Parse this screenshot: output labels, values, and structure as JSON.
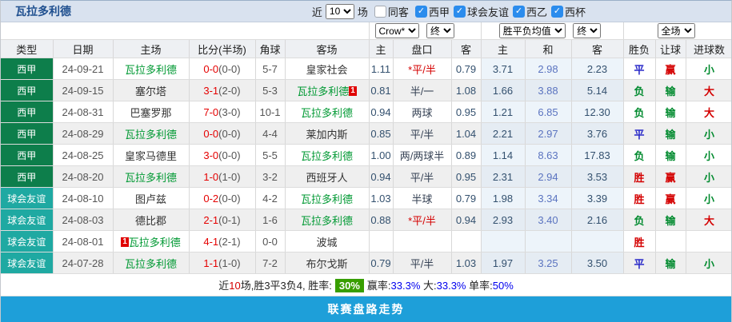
{
  "header": {
    "team": "瓦拉多利德",
    "recent_label": "近",
    "recent_value": "10",
    "matches_label": "场",
    "same_away_label": "同客",
    "leagues": [
      {
        "label": "西甲",
        "checked": true
      },
      {
        "label": "球会友谊",
        "checked": true
      },
      {
        "label": "西乙",
        "checked": true
      },
      {
        "label": "西杯",
        "checked": true
      }
    ]
  },
  "filters": {
    "odds_source": "Crow*",
    "asia_time": "终",
    "europe_avg": "胜平负均值",
    "europe_time": "终",
    "scope": "全场"
  },
  "columns": [
    "类型",
    "日期",
    "主场",
    "比分(半场)",
    "角球",
    "客场",
    "主",
    "盘口",
    "客",
    "主",
    "和",
    "客",
    "胜负",
    "让球",
    "进球数"
  ],
  "colors": {
    "league_green": "#0d7e4b",
    "league_teal": "#1fa9a2",
    "self_team_green": "#009933",
    "score_red": "#e50000",
    "result_red": "#d40000",
    "result_blue": "#2929c8",
    "result_green": "#008a2e",
    "summary_badge_green": "#389e00",
    "footer_blue": "#1e9fd9"
  },
  "rows": [
    {
      "league": "西甲",
      "league_class": "lg-green",
      "date": "24-09-21",
      "home": {
        "name": "瓦拉多利德",
        "self": true
      },
      "score_full": "0-0",
      "score_half": "(0-0)",
      "corners": "5-7",
      "away": {
        "name": "皇家社会",
        "self": false
      },
      "asia_home": "1.11",
      "asia_handicap": "*平/半",
      "asia_star": true,
      "asia_away": "0.79",
      "eu_home": "3.71",
      "eu_draw": "2.98",
      "eu_away": "2.23",
      "result": "平",
      "result_c": "blue",
      "hresult": "赢",
      "hresult_c": "red",
      "goals": "小",
      "goals_c": "green"
    },
    {
      "league": "西甲",
      "league_class": "lg-green",
      "date": "24-09-15",
      "home": {
        "name": "塞尔塔",
        "self": false
      },
      "score_full": "3-1",
      "score_half": "(2-0)",
      "corners": "5-3",
      "away": {
        "name": "瓦拉多利德",
        "self": true,
        "badge_after": "1"
      },
      "asia_home": "0.81",
      "asia_handicap": "半/一",
      "asia_star": false,
      "asia_away": "1.08",
      "eu_home": "1.66",
      "eu_draw": "3.88",
      "eu_away": "5.14",
      "result": "负",
      "result_c": "green",
      "hresult": "输",
      "hresult_c": "green",
      "goals": "大",
      "goals_c": "red"
    },
    {
      "league": "西甲",
      "league_class": "lg-green",
      "date": "24-08-31",
      "home": {
        "name": "巴塞罗那",
        "self": false
      },
      "score_full": "7-0",
      "score_half": "(3-0)",
      "corners": "10-1",
      "away": {
        "name": "瓦拉多利德",
        "self": true
      },
      "asia_home": "0.94",
      "asia_handicap": "两球",
      "asia_star": false,
      "asia_away": "0.95",
      "eu_home": "1.21",
      "eu_draw": "6.85",
      "eu_away": "12.30",
      "result": "负",
      "result_c": "green",
      "hresult": "输",
      "hresult_c": "green",
      "goals": "大",
      "goals_c": "red"
    },
    {
      "league": "西甲",
      "league_class": "lg-green",
      "date": "24-08-29",
      "home": {
        "name": "瓦拉多利德",
        "self": true
      },
      "score_full": "0-0",
      "score_half": "(0-0)",
      "corners": "4-4",
      "away": {
        "name": "莱加内斯",
        "self": false
      },
      "asia_home": "0.85",
      "asia_handicap": "平/半",
      "asia_star": false,
      "asia_away": "1.04",
      "eu_home": "2.21",
      "eu_draw": "2.97",
      "eu_away": "3.76",
      "result": "平",
      "result_c": "blue",
      "hresult": "输",
      "hresult_c": "green",
      "goals": "小",
      "goals_c": "green"
    },
    {
      "league": "西甲",
      "league_class": "lg-green",
      "date": "24-08-25",
      "home": {
        "name": "皇家马德里",
        "self": false
      },
      "score_full": "3-0",
      "score_half": "(0-0)",
      "corners": "5-5",
      "away": {
        "name": "瓦拉多利德",
        "self": true
      },
      "asia_home": "1.00",
      "asia_handicap": "两/两球半",
      "asia_star": false,
      "asia_away": "0.89",
      "eu_home": "1.14",
      "eu_draw": "8.63",
      "eu_away": "17.83",
      "result": "负",
      "result_c": "green",
      "hresult": "输",
      "hresult_c": "green",
      "goals": "小",
      "goals_c": "green"
    },
    {
      "league": "西甲",
      "league_class": "lg-green",
      "date": "24-08-20",
      "home": {
        "name": "瓦拉多利德",
        "self": true
      },
      "score_full": "1-0",
      "score_half": "(1-0)",
      "corners": "3-2",
      "away": {
        "name": "西班牙人",
        "self": false
      },
      "asia_home": "0.94",
      "asia_handicap": "平/半",
      "asia_star": false,
      "asia_away": "0.95",
      "eu_home": "2.31",
      "eu_draw": "2.94",
      "eu_away": "3.53",
      "result": "胜",
      "result_c": "red",
      "hresult": "赢",
      "hresult_c": "red",
      "goals": "小",
      "goals_c": "green"
    },
    {
      "league": "球会友谊",
      "league_class": "lg-teal",
      "date": "24-08-10",
      "home": {
        "name": "图卢兹",
        "self": false
      },
      "score_full": "0-2",
      "score_half": "(0-0)",
      "corners": "4-2",
      "away": {
        "name": "瓦拉多利德",
        "self": true
      },
      "asia_home": "1.03",
      "asia_handicap": "半球",
      "asia_star": false,
      "asia_away": "0.79",
      "eu_home": "1.98",
      "eu_draw": "3.34",
      "eu_away": "3.39",
      "result": "胜",
      "result_c": "red",
      "hresult": "赢",
      "hresult_c": "red",
      "goals": "小",
      "goals_c": "green"
    },
    {
      "league": "球会友谊",
      "league_class": "lg-teal",
      "date": "24-08-03",
      "home": {
        "name": "德比郡",
        "self": false
      },
      "score_full": "2-1",
      "score_half": "(0-1)",
      "corners": "1-6",
      "away": {
        "name": "瓦拉多利德",
        "self": true
      },
      "asia_home": "0.88",
      "asia_handicap": "*平/半",
      "asia_star": true,
      "asia_away": "0.94",
      "eu_home": "2.93",
      "eu_draw": "3.40",
      "eu_away": "2.16",
      "result": "负",
      "result_c": "green",
      "hresult": "输",
      "hresult_c": "green",
      "goals": "大",
      "goals_c": "red"
    },
    {
      "league": "球会友谊",
      "league_class": "lg-teal",
      "date": "24-08-01",
      "home": {
        "name": "瓦拉多利德",
        "self": true,
        "badge_before": "1"
      },
      "score_full": "4-1",
      "score_half": "(2-1)",
      "corners": "0-0",
      "away": {
        "name": "波城",
        "self": false
      },
      "asia_home": "",
      "asia_handicap": "",
      "asia_star": false,
      "asia_away": "",
      "eu_home": "",
      "eu_draw": "",
      "eu_away": "",
      "result": "胜",
      "result_c": "red",
      "hresult": "",
      "hresult_c": "",
      "goals": "",
      "goals_c": ""
    },
    {
      "league": "球会友谊",
      "league_class": "lg-teal",
      "date": "24-07-28",
      "home": {
        "name": "瓦拉多利德",
        "self": true
      },
      "score_full": "1-1",
      "score_half": "(1-0)",
      "corners": "7-2",
      "away": {
        "name": "布尔戈斯",
        "self": false
      },
      "asia_home": "0.79",
      "asia_handicap": "平/半",
      "asia_star": false,
      "asia_away": "1.03",
      "eu_home": "1.97",
      "eu_draw": "3.25",
      "eu_away": "3.50",
      "result": "平",
      "result_c": "blue",
      "hresult": "输",
      "hresult_c": "green",
      "goals": "小",
      "goals_c": "green"
    }
  ],
  "summary": {
    "parts": [
      {
        "text": "近"
      },
      {
        "text": "10",
        "style": "red"
      },
      {
        "text": "场,胜3平3负4, 胜率:"
      },
      {
        "text": "30%",
        "style": "badge"
      },
      {
        "text": "赢率:"
      },
      {
        "text": "33.3%",
        "style": "blue"
      },
      {
        "text": " 大:"
      },
      {
        "text": "33.3%",
        "style": "blue"
      },
      {
        "text": " 单率:"
      },
      {
        "text": "50%",
        "style": "blue"
      }
    ]
  },
  "footer": {
    "label": "联赛盘路走势"
  }
}
